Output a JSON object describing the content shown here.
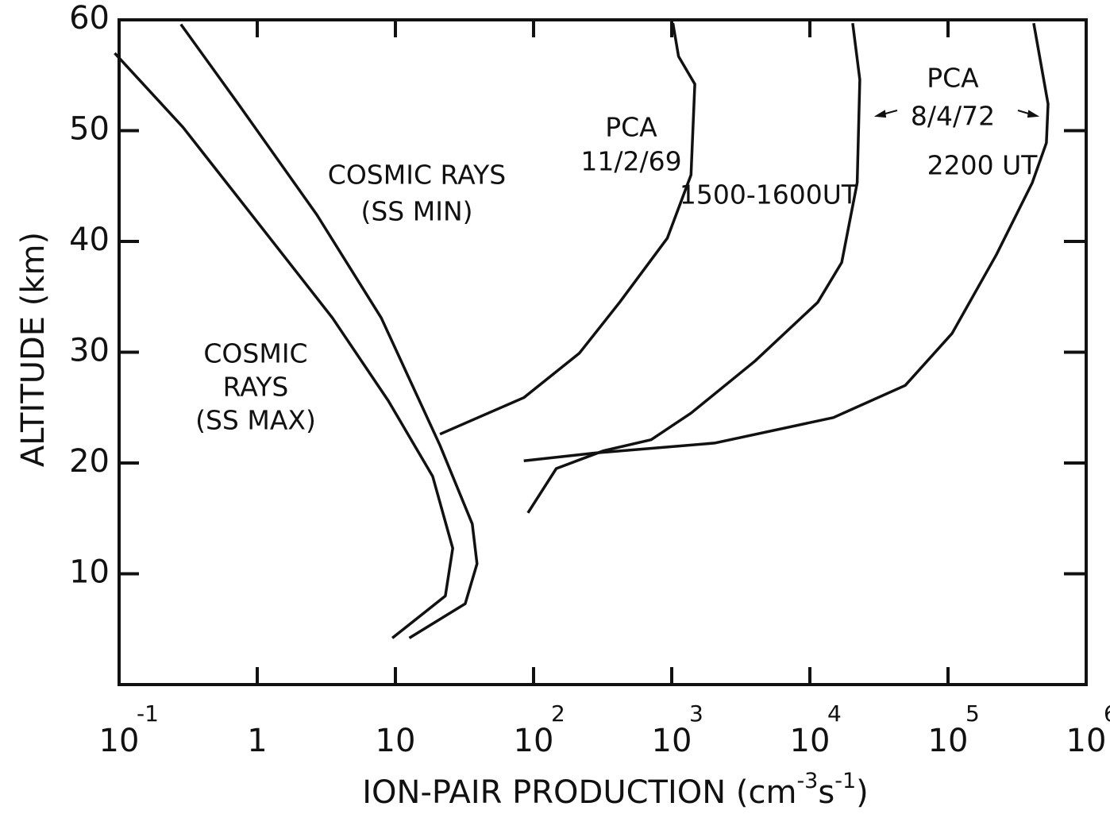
{
  "chart_data": {
    "type": "line",
    "x_label": [
      "ION-PAIR PRODUCTION (cm",
      "-3",
      "s",
      "-1",
      ")"
    ],
    "y_label": "ALTITUDE (km)",
    "xscale": "log",
    "xlim": [
      0.1,
      1000000
    ],
    "xticks": [
      {
        "value": 0.1,
        "label": "10",
        "sup": "-1"
      },
      1,
      10,
      {
        "value": 100,
        "label": "10",
        "sup": "2"
      },
      {
        "value": 1000,
        "label": "10",
        "sup": "3"
      },
      {
        "value": 10000,
        "label": "10",
        "sup": "4"
      },
      {
        "value": 100000,
        "label": "10",
        "sup": "5"
      },
      {
        "value": 1000000,
        "label": "10",
        "sup": "6"
      }
    ],
    "ylim": [
      0,
      60
    ],
    "yticks": [
      10,
      20,
      30,
      40,
      50,
      60
    ],
    "series": [
      {
        "color": "#111111",
        "x": [
          0.093,
          0.29,
          1.07,
          3.5,
          8.9,
          18.6,
          26,
          23,
          9.5
        ],
        "values": [
          57.0,
          50.3,
          41.3,
          33.1,
          25.6,
          18.8,
          12.3,
          8.0,
          4.2
        ]
      },
      {
        "color": "#111111",
        "x": [
          0.28,
          0.73,
          2.7,
          7.9,
          21,
          36,
          39,
          32,
          12.6
        ],
        "values": [
          59.6,
          52.4,
          42.4,
          33.1,
          21.6,
          14.5,
          10.9,
          7.3,
          4.2
        ]
      },
      {
        "color": "#111111",
        "x": [
          1020,
          1120,
          1470,
          1380,
          930,
          420,
          214,
          85,
          21
        ],
        "values": [
          59.7,
          56.7,
          54.2,
          46.0,
          40.3,
          34.5,
          29.9,
          25.9,
          22.6
        ]
      },
      {
        "color": "#111111",
        "x": [
          20400,
          23000,
          22000,
          17000,
          11400,
          4000,
          1380,
          710,
          320,
          146,
          91
        ],
        "values": [
          59.7,
          54.6,
          45.3,
          38.1,
          34.5,
          29.2,
          24.5,
          22.1,
          21.1,
          19.5,
          15.5
        ]
      },
      {
        "color": "#111111",
        "x": [
          417000,
          530000,
          515000,
          407000,
          224000,
          107000,
          49000,
          14800,
          2040,
          280,
          85
        ],
        "values": [
          59.7,
          52.4,
          48.9,
          45.3,
          38.8,
          31.7,
          27.0,
          24.1,
          21.8,
          20.9,
          20.2
        ]
      }
    ],
    "annotations": [
      {
        "lines": [
          "COSMIC RAYS",
          "(SS MIN)"
        ]
      },
      {
        "lines": [
          "COSMIC",
          "RAYS",
          "(SS MAX)"
        ]
      },
      {
        "lines": [
          "PCA",
          "11/2/69"
        ]
      },
      {
        "lines": [
          "1500-1600UT"
        ]
      },
      {
        "lines": [
          "PCA",
          "8/4/72"
        ]
      },
      {
        "lines": [
          "2200 UT"
        ]
      }
    ]
  }
}
